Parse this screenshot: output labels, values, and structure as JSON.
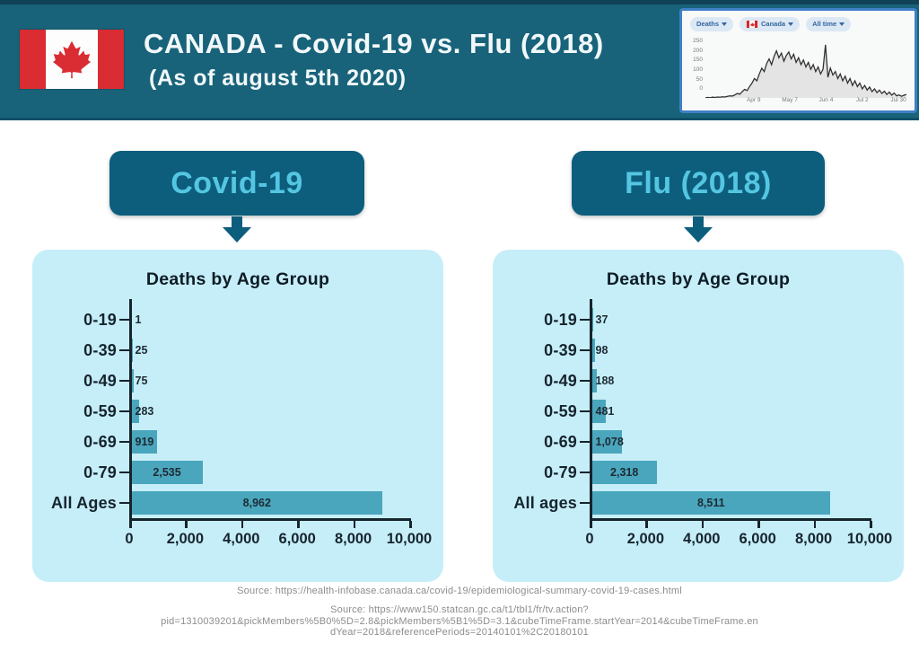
{
  "header": {
    "title": "CANADA - Covid-19 vs. Flu (2018)",
    "subtitle": "(As of august 5th 2020)"
  },
  "thumbnail": {
    "dropdowns": [
      "Deaths",
      "Canada",
      "All time"
    ]
  },
  "panels": [
    {
      "button_label": "Covid-19"
    },
    {
      "button_label": "Flu (2018)"
    }
  ],
  "chart_data": [
    {
      "type": "bar",
      "orientation": "horizontal",
      "title": "Deaths by Age Group",
      "group": "Covid-19",
      "categories": [
        "0-19",
        "0-39",
        "0-49",
        "0-59",
        "0-69",
        "0-79",
        "All Ages"
      ],
      "values": [
        1,
        25,
        75,
        283,
        919,
        2535,
        8962
      ],
      "value_labels": [
        "1",
        "25",
        "75",
        "283",
        "919",
        "2,535",
        "8,962"
      ],
      "xlim": [
        0,
        10000
      ],
      "x_ticks": [
        "0",
        "2,000",
        "4,000",
        "6,000",
        "8,000",
        "10,000"
      ],
      "grid": false
    },
    {
      "type": "bar",
      "orientation": "horizontal",
      "title": "Deaths by Age Group",
      "group": "Flu (2018)",
      "categories": [
        "0-19",
        "0-39",
        "0-49",
        "0-59",
        "0-69",
        "0-79",
        "All ages"
      ],
      "values": [
        37,
        98,
        188,
        481,
        1078,
        2318,
        8511
      ],
      "value_labels": [
        "37",
        "98",
        "188",
        "481",
        "1,078",
        "2,318",
        "8,511"
      ],
      "xlim": [
        0,
        10000
      ],
      "x_ticks": [
        "0",
        "2,000",
        "4,000",
        "6,000",
        "8,000",
        "10,000"
      ],
      "grid": false
    },
    {
      "type": "line",
      "group": "Deaths over time (thumbnail, values estimated)",
      "ylim": [
        0,
        250
      ],
      "y_ticks": [
        "250",
        "200",
        "150",
        "100",
        "50",
        "0"
      ],
      "x_ticks": [
        "Apr 9",
        "May 7",
        "Jun 4",
        "Jul 2",
        "Jul 30"
      ],
      "values": [
        2,
        3,
        2,
        4,
        3,
        5,
        4,
        6,
        5,
        8,
        10,
        9,
        14,
        20,
        17,
        28,
        38,
        33,
        50,
        65,
        85,
        75,
        105,
        130,
        115,
        150,
        170,
        145,
        180,
        205,
        175,
        195,
        160,
        185,
        200,
        170,
        190,
        155,
        175,
        145,
        165,
        135,
        155,
        125,
        145,
        115,
        135,
        105,
        125,
        231,
        90,
        130,
        100,
        115,
        85,
        105,
        75,
        95,
        65,
        85,
        55,
        75,
        50,
        65,
        40,
        55,
        35,
        48,
        28,
        40,
        24,
        35,
        20,
        30,
        16,
        26,
        13,
        22,
        10,
        14,
        8,
        12,
        16
      ]
    }
  ],
  "sources": {
    "line1": "Source: https://health-infobase.canada.ca/covid-19/epidemiological-summary-covid-19-cases.html",
    "line2_lines": [
      "Source: https://www150.statcan.gc.ca/t1/tbl1/fr/tv.action?",
      "pid=1310039201&pickMembers%5B0%5D=2.8&pickMembers%5B1%5D=3.1&cubeTimeFrame.startYear=2014&cubeTimeFrame.en",
      "dYear=2018&referencePeriods=20140101%2C20180101"
    ]
  },
  "colors": {
    "header_bg": "#18637a",
    "tag_bg": "#0d5e7d",
    "tag_text": "#54c6e2",
    "panel_bg": "#c6eef8",
    "bar_fill": "#4aa6bd",
    "axis_text": "#16242e",
    "source_text": "#8d8d8d",
    "flag_red": "#da2c33",
    "thumb_border": "#3f80c6"
  }
}
